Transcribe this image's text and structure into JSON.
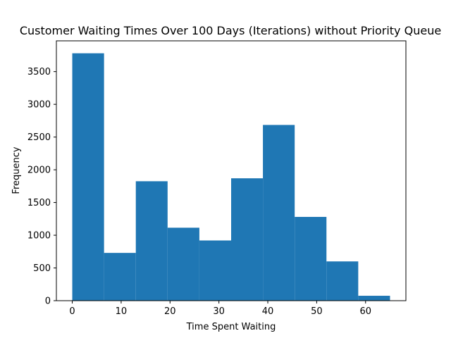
{
  "chart_data": {
    "type": "bar",
    "title": "Customer Waiting Times Over 100 Days (Iterations) without Priority Queue",
    "xlabel": "Time Spent Waiting",
    "ylabel": "Frequency",
    "xlim": [
      -3.25,
      68.25
    ],
    "ylim": [
      0,
      3970
    ],
    "grid": false,
    "bin_edges": [
      0,
      6.5,
      13,
      19.5,
      26,
      32.5,
      39,
      45.5,
      52,
      58.5,
      65
    ],
    "values": [
      3780,
      730,
      1825,
      1115,
      920,
      1870,
      2685,
      1280,
      600,
      75
    ],
    "color": "#1f77b4",
    "xticks": [
      0,
      10,
      20,
      30,
      40,
      50,
      60
    ],
    "xtick_labels": [
      "0",
      "10",
      "20",
      "30",
      "40",
      "50",
      "60"
    ],
    "yticks": [
      0,
      500,
      1000,
      1500,
      2000,
      2500,
      3000,
      3500
    ],
    "ytick_labels": [
      "0",
      "500",
      "1000",
      "1500",
      "2000",
      "2500",
      "3000",
      "3500"
    ]
  }
}
